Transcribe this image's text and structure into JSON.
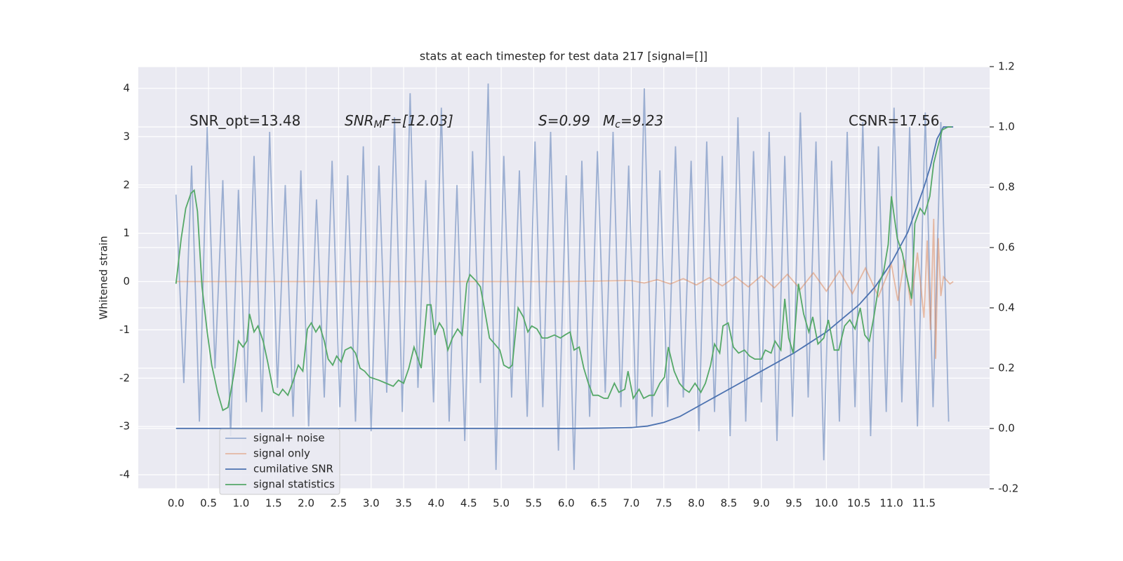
{
  "chart_data": {
    "type": "line",
    "title": "stats at each timestep for test data 217 [signal=[]]",
    "ylabel": "Whitened strain",
    "xlim": [
      -0.58,
      12.51
    ],
    "ylim": [
      -4.29,
      4.45
    ],
    "y2lim": [
      -0.2,
      1.2
    ],
    "xticks": [
      {
        "value": 0,
        "label": "0.0"
      },
      0.5,
      {
        "value": 1,
        "label": "1.0"
      },
      1.5,
      {
        "value": 2,
        "label": "2.0"
      },
      2.5,
      {
        "value": 3,
        "label": "3.0"
      },
      3.5,
      {
        "value": 4,
        "label": "4.0"
      },
      4.5,
      {
        "value": 5,
        "label": "5.0"
      },
      5.5,
      {
        "value": 6,
        "label": "6.0"
      },
      6.5,
      {
        "value": 7,
        "label": "7.0"
      },
      7.5,
      {
        "value": 8,
        "label": "8.0"
      },
      8.5,
      {
        "value": 9,
        "label": "9.0"
      },
      9.5,
      {
        "value": 10,
        "label": "10.0"
      },
      10.5,
      {
        "value": 11,
        "label": "11.0"
      },
      11.5
    ],
    "yticks": [
      -4,
      -3,
      -2,
      -1,
      0,
      1,
      2,
      3,
      4
    ],
    "y2ticks": [
      -0.2,
      {
        "value": 0,
        "label": "0.0"
      },
      0.2,
      0.4,
      0.6,
      0.8,
      {
        "value": 1,
        "label": "1.0"
      },
      1.2
    ],
    "grid": true,
    "legend": "lower left",
    "annotations": [
      {
        "math": false,
        "parts": [
          "SNR_opt=13.48"
        ]
      },
      {
        "math": true,
        "parts": [
          "SNR",
          "M",
          "F=[12.03]"
        ]
      },
      {
        "math": true,
        "parts": [
          "S=0.99"
        ]
      },
      {
        "math": true,
        "parts": [
          "M",
          "c",
          "=9.23"
        ]
      },
      {
        "math": false,
        "parts": [
          "CSNR=17.56"
        ]
      }
    ],
    "series": [
      {
        "name": "signal+ noise",
        "color": "#4c72b0",
        "alpha": 0.5,
        "x": [
          0,
          0.12,
          0.24,
          0.36,
          0.48,
          0.6,
          0.72,
          0.84,
          0.96,
          1.08,
          1.2,
          1.32,
          1.44,
          1.56,
          1.68,
          1.8,
          1.92,
          2.04,
          2.16,
          2.28,
          2.4,
          2.52,
          2.64,
          2.76,
          2.88,
          3.0,
          3.12,
          3.24,
          3.36,
          3.48,
          3.6,
          3.72,
          3.84,
          3.96,
          4.08,
          4.2,
          4.32,
          4.44,
          4.56,
          4.68,
          4.8,
          4.92,
          5.04,
          5.16,
          5.28,
          5.4,
          5.52,
          5.64,
          5.76,
          5.88,
          6.0,
          6.12,
          6.24,
          6.36,
          6.48,
          6.6,
          6.72,
          6.84,
          6.96,
          7.08,
          7.2,
          7.32,
          7.44,
          7.56,
          7.68,
          7.8,
          7.92,
          8.04,
          8.16,
          8.28,
          8.4,
          8.52,
          8.64,
          8.76,
          8.88,
          9.0,
          9.12,
          9.24,
          9.36,
          9.48,
          9.6,
          9.72,
          9.84,
          9.96,
          10.08,
          10.2,
          10.32,
          10.44,
          10.56,
          10.68,
          10.8,
          10.92,
          11.04,
          11.16,
          11.28,
          11.4,
          11.52,
          11.64,
          11.76,
          11.88
        ],
        "values": [
          1.8,
          -2.1,
          2.4,
          -2.9,
          3.2,
          -1.8,
          2.1,
          -3.2,
          1.9,
          -2.5,
          2.6,
          -2.7,
          3.1,
          -2.2,
          2.0,
          -2.8,
          2.3,
          -3.0,
          1.7,
          -2.4,
          2.5,
          -2.6,
          2.2,
          -2.9,
          2.8,
          -3.1,
          2.4,
          -2.3,
          3.4,
          -2.7,
          3.9,
          -2.2,
          2.1,
          -2.5,
          3.6,
          -2.9,
          2.0,
          -3.3,
          2.7,
          -2.1,
          4.1,
          -3.9,
          2.6,
          -2.4,
          2.3,
          -2.8,
          2.9,
          -2.6,
          3.1,
          -3.5,
          2.2,
          -3.9,
          2.5,
          -2.8,
          2.7,
          -2.3,
          3.1,
          -2.6,
          2.4,
          -3.0,
          4.0,
          -2.8,
          2.3,
          -2.6,
          2.8,
          -2.4,
          2.5,
          -3.1,
          2.9,
          -2.7,
          2.6,
          -3.2,
          3.4,
          -2.9,
          2.7,
          -2.5,
          3.1,
          -3.3,
          2.6,
          -2.8,
          3.5,
          -2.4,
          2.9,
          -3.7,
          2.5,
          -2.9,
          3.1,
          -2.6,
          3.3,
          -3.2,
          2.8,
          -2.7,
          3.6,
          -2.5,
          3.2,
          -3.0,
          3.5,
          -2.6,
          3.3,
          -2.9
        ]
      },
      {
        "name": "signal only",
        "color": "#dd8452",
        "alpha": 0.5,
        "x": [
          0,
          2,
          4,
          6,
          7.0,
          7.2,
          7.4,
          7.6,
          7.8,
          8.0,
          8.2,
          8.4,
          8.6,
          8.8,
          9.0,
          9.2,
          9.4,
          9.6,
          9.8,
          10.0,
          10.2,
          10.4,
          10.6,
          10.8,
          11.0,
          11.1,
          11.2,
          11.3,
          11.4,
          11.5,
          11.55,
          11.6,
          11.65,
          11.68,
          11.72,
          11.76,
          11.8,
          11.9,
          11.95
        ],
        "values": [
          0,
          0,
          0,
          0,
          0.02,
          -0.03,
          0.04,
          -0.05,
          0.06,
          -0.07,
          0.08,
          -0.09,
          0.1,
          -0.11,
          0.12,
          -0.13,
          0.15,
          -0.16,
          0.18,
          -0.2,
          0.22,
          -0.25,
          0.28,
          -0.31,
          0.35,
          -0.4,
          0.45,
          -0.5,
          0.6,
          -0.75,
          0.85,
          -1.0,
          1.3,
          -1.6,
          0.9,
          -0.3,
          0.1,
          -0.05,
          0
        ]
      },
      {
        "name": "cumilative SNR",
        "color": "#4c72b0",
        "axis": "y2",
        "x": [
          0,
          1,
          2,
          3,
          4,
          5,
          6,
          6.5,
          7,
          7.25,
          7.5,
          7.75,
          8,
          8.5,
          9,
          9.5,
          10,
          10.5,
          10.75,
          11,
          11.25,
          11.5,
          11.6,
          11.7,
          11.8,
          11.95
        ],
        "values": [
          0,
          0,
          0,
          0,
          0,
          0,
          0,
          0.001,
          0.003,
          0.008,
          0.02,
          0.04,
          0.07,
          0.13,
          0.19,
          0.25,
          0.32,
          0.41,
          0.47,
          0.55,
          0.65,
          0.8,
          0.87,
          0.96,
          1.0,
          1.0
        ]
      },
      {
        "name": "signal statistics",
        "color": "#55a868",
        "axis": "y2",
        "x": [
          0,
          0.08,
          0.15,
          0.23,
          0.28,
          0.33,
          0.4,
          0.48,
          0.55,
          0.64,
          0.72,
          0.8,
          0.89,
          0.96,
          1.03,
          1.09,
          1.13,
          1.2,
          1.26,
          1.34,
          1.41,
          1.5,
          1.58,
          1.64,
          1.72,
          1.79,
          1.88,
          1.95,
          2.02,
          2.08,
          2.15,
          2.21,
          2.28,
          2.34,
          2.41,
          2.47,
          2.54,
          2.6,
          2.69,
          2.76,
          2.83,
          2.9,
          2.98,
          3.12,
          3.23,
          3.34,
          3.42,
          3.5,
          3.58,
          3.66,
          3.77,
          3.86,
          3.92,
          3.98,
          4.05,
          4.11,
          4.18,
          4.25,
          4.33,
          4.4,
          4.47,
          4.52,
          4.61,
          4.68,
          4.74,
          4.82,
          4.9,
          4.98,
          5.04,
          5.12,
          5.17,
          5.26,
          5.34,
          5.41,
          5.47,
          5.55,
          5.63,
          5.71,
          5.82,
          5.91,
          5.98,
          6.06,
          6.12,
          6.2,
          6.27,
          6.34,
          6.41,
          6.49,
          6.58,
          6.64,
          6.74,
          6.81,
          6.9,
          6.95,
          7.03,
          7.12,
          7.19,
          7.28,
          7.35,
          7.44,
          7.51,
          7.57,
          7.66,
          7.74,
          7.82,
          7.89,
          7.98,
          8.07,
          8.14,
          8.22,
          8.28,
          8.36,
          8.41,
          8.49,
          8.57,
          8.65,
          8.74,
          8.82,
          8.9,
          9.0,
          9.06,
          9.15,
          9.21,
          9.3,
          9.36,
          9.42,
          9.49,
          9.57,
          9.65,
          9.73,
          9.79,
          9.87,
          9.96,
          10.03,
          10.12,
          10.19,
          10.28,
          10.36,
          10.44,
          10.52,
          10.59,
          10.66,
          10.73,
          10.81,
          10.88,
          10.95,
          11.0,
          11.09,
          11.17,
          11.22,
          11.31,
          11.36,
          11.44,
          11.51,
          11.59,
          11.65,
          11.72,
          11.78,
          11.87,
          11.93
        ],
        "values": [
          0.48,
          0.63,
          0.73,
          0.78,
          0.79,
          0.72,
          0.47,
          0.32,
          0.21,
          0.12,
          0.06,
          0.07,
          0.18,
          0.29,
          0.27,
          0.29,
          0.38,
          0.32,
          0.34,
          0.29,
          0.22,
          0.12,
          0.11,
          0.13,
          0.11,
          0.15,
          0.21,
          0.19,
          0.33,
          0.35,
          0.32,
          0.34,
          0.29,
          0.23,
          0.21,
          0.24,
          0.22,
          0.26,
          0.27,
          0.25,
          0.2,
          0.19,
          0.17,
          0.16,
          0.15,
          0.14,
          0.16,
          0.15,
          0.2,
          0.27,
          0.2,
          0.41,
          0.41,
          0.31,
          0.35,
          0.33,
          0.26,
          0.3,
          0.33,
          0.31,
          0.48,
          0.51,
          0.49,
          0.47,
          0.4,
          0.3,
          0.28,
          0.26,
          0.21,
          0.2,
          0.21,
          0.4,
          0.37,
          0.32,
          0.34,
          0.33,
          0.3,
          0.3,
          0.31,
          0.3,
          0.31,
          0.32,
          0.26,
          0.27,
          0.2,
          0.15,
          0.11,
          0.11,
          0.1,
          0.1,
          0.15,
          0.12,
          0.13,
          0.19,
          0.1,
          0.13,
          0.1,
          0.11,
          0.11,
          0.15,
          0.17,
          0.27,
          0.19,
          0.15,
          0.13,
          0.12,
          0.15,
          0.12,
          0.15,
          0.21,
          0.28,
          0.25,
          0.34,
          0.35,
          0.27,
          0.25,
          0.26,
          0.24,
          0.23,
          0.23,
          0.26,
          0.25,
          0.29,
          0.26,
          0.43,
          0.3,
          0.25,
          0.48,
          0.38,
          0.32,
          0.37,
          0.28,
          0.3,
          0.36,
          0.26,
          0.26,
          0.34,
          0.36,
          0.33,
          0.4,
          0.31,
          0.29,
          0.37,
          0.48,
          0.52,
          0.61,
          0.77,
          0.63,
          0.58,
          0.52,
          0.43,
          0.68,
          0.73,
          0.71,
          0.77,
          0.88,
          0.94,
          0.99,
          1.0,
          1.0
        ]
      }
    ]
  }
}
